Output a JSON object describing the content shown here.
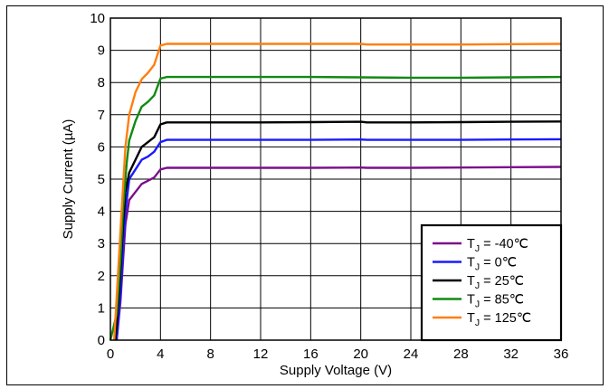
{
  "chart_data": {
    "type": "line",
    "xlabel": "Supply Voltage (V)",
    "ylabel": "Supply Current (µA)",
    "xlim": [
      0,
      36
    ],
    "ylim": [
      0,
      10
    ],
    "x_ticks": [
      0,
      4,
      8,
      12,
      16,
      20,
      24,
      28,
      32,
      36
    ],
    "y_ticks": [
      0,
      1,
      2,
      3,
      4,
      5,
      6,
      7,
      8,
      9,
      10
    ],
    "grid": true,
    "legend_position": "bottom-right",
    "series": [
      {
        "name": "T_J = -40℃",
        "legend_parts": [
          "T",
          "J",
          " = -40℃"
        ],
        "color": "#7a0f8a",
        "points": [
          [
            0.5,
            0
          ],
          [
            0.8,
            1.2
          ],
          [
            1.0,
            2.4
          ],
          [
            1.2,
            3.6
          ],
          [
            1.5,
            4.35
          ],
          [
            2.0,
            4.6
          ],
          [
            2.5,
            4.85
          ],
          [
            3.0,
            4.95
          ],
          [
            3.5,
            5.05
          ],
          [
            4.0,
            5.3
          ],
          [
            4.5,
            5.35
          ],
          [
            8,
            5.35
          ],
          [
            12,
            5.35
          ],
          [
            16,
            5.35
          ],
          [
            20,
            5.36
          ],
          [
            20.5,
            5.35
          ],
          [
            24,
            5.35
          ],
          [
            28,
            5.36
          ],
          [
            32,
            5.37
          ],
          [
            36,
            5.38
          ]
        ]
      },
      {
        "name": "T_J = 0℃",
        "legend_parts": [
          "T",
          "J",
          " = 0℃"
        ],
        "color": "#1a1aff",
        "points": [
          [
            0.5,
            0
          ],
          [
            0.8,
            1.4
          ],
          [
            1.0,
            2.8
          ],
          [
            1.2,
            4.0
          ],
          [
            1.5,
            5.0
          ],
          [
            2.0,
            5.3
          ],
          [
            2.5,
            5.6
          ],
          [
            3.0,
            5.7
          ],
          [
            3.5,
            5.85
          ],
          [
            4.0,
            6.15
          ],
          [
            4.5,
            6.22
          ],
          [
            8,
            6.22
          ],
          [
            12,
            6.22
          ],
          [
            16,
            6.22
          ],
          [
            20,
            6.23
          ],
          [
            20.5,
            6.22
          ],
          [
            24,
            6.22
          ],
          [
            28,
            6.22
          ],
          [
            32,
            6.23
          ],
          [
            36,
            6.24
          ]
        ]
      },
      {
        "name": "T_J = 25℃",
        "legend_parts": [
          "T",
          "J",
          " = 25℃"
        ],
        "color": "#000000",
        "points": [
          [
            0.4,
            0
          ],
          [
            0.7,
            1.5
          ],
          [
            1.0,
            3.5
          ],
          [
            1.2,
            4.6
          ],
          [
            1.5,
            5.2
          ],
          [
            2.0,
            5.6
          ],
          [
            2.5,
            6.0
          ],
          [
            3.0,
            6.15
          ],
          [
            3.5,
            6.3
          ],
          [
            4.0,
            6.7
          ],
          [
            4.5,
            6.76
          ],
          [
            8,
            6.76
          ],
          [
            12,
            6.76
          ],
          [
            16,
            6.77
          ],
          [
            20,
            6.78
          ],
          [
            20.5,
            6.76
          ],
          [
            24,
            6.76
          ],
          [
            28,
            6.77
          ],
          [
            32,
            6.78
          ],
          [
            36,
            6.79
          ]
        ]
      },
      {
        "name": "T_J = 85℃",
        "legend_parts": [
          "T",
          "J",
          " = 85℃"
        ],
        "color": "#118a11",
        "points": [
          [
            0,
            0
          ],
          [
            0.5,
            0.8
          ],
          [
            0.8,
            2.5
          ],
          [
            1.0,
            4.0
          ],
          [
            1.3,
            5.5
          ],
          [
            1.5,
            6.2
          ],
          [
            2.0,
            6.8
          ],
          [
            2.5,
            7.25
          ],
          [
            3.0,
            7.4
          ],
          [
            3.5,
            7.6
          ],
          [
            4.0,
            8.12
          ],
          [
            4.5,
            8.17
          ],
          [
            8,
            8.17
          ],
          [
            12,
            8.17
          ],
          [
            16,
            8.17
          ],
          [
            20,
            8.16
          ],
          [
            24,
            8.15
          ],
          [
            28,
            8.15
          ],
          [
            32,
            8.16
          ],
          [
            36,
            8.17
          ]
        ]
      },
      {
        "name": "T_J = 125℃",
        "legend_parts": [
          "T",
          "J",
          " = 125℃"
        ],
        "color": "#ff7f0e",
        "points": [
          [
            0.3,
            0
          ],
          [
            0.6,
            2.0
          ],
          [
            0.9,
            4.0
          ],
          [
            1.2,
            6.0
          ],
          [
            1.5,
            7.0
          ],
          [
            2.0,
            7.7
          ],
          [
            2.5,
            8.1
          ],
          [
            3.0,
            8.3
          ],
          [
            3.5,
            8.55
          ],
          [
            4.0,
            9.15
          ],
          [
            4.5,
            9.2
          ],
          [
            8,
            9.2
          ],
          [
            12,
            9.2
          ],
          [
            16,
            9.2
          ],
          [
            20,
            9.2
          ],
          [
            20.5,
            9.18
          ],
          [
            24,
            9.18
          ],
          [
            28,
            9.18
          ],
          [
            32,
            9.19
          ],
          [
            36,
            9.2
          ]
        ]
      }
    ]
  }
}
